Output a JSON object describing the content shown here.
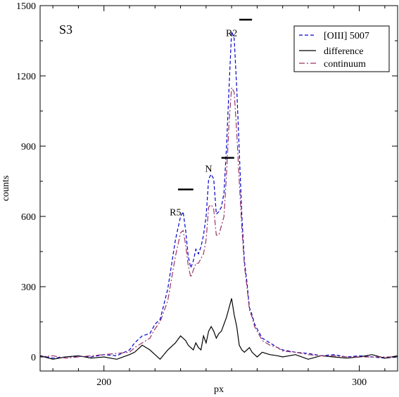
{
  "chart_data": {
    "type": "line",
    "title": "",
    "panel_label": "S3",
    "xlabel": "px",
    "ylabel": "counts",
    "xlim": [
      175,
      315
    ],
    "ylim": [
      -60,
      1500
    ],
    "xticks": [
      200,
      300
    ],
    "yticks": [
      0,
      300,
      600,
      900,
      1200,
      1500
    ],
    "grid": false,
    "legend_position": "top-right",
    "series": [
      {
        "name": "[OIII] 5007",
        "style": "dashed",
        "color": "#0000cc",
        "x": [
          175,
          180,
          185,
          190,
          195,
          200,
          205,
          210,
          212,
          215,
          218,
          220,
          222,
          225,
          228,
          230,
          231,
          232,
          233,
          234,
          235,
          236,
          237,
          238,
          239,
          240,
          241,
          242,
          243,
          244,
          245,
          246,
          247,
          248,
          249,
          250,
          251,
          252,
          253,
          254,
          255,
          256,
          257,
          258,
          259,
          260,
          262,
          265,
          268,
          270,
          275,
          280,
          285,
          290,
          295,
          300,
          305,
          310,
          315
        ],
        "y": [
          5,
          -5,
          0,
          3,
          0,
          10,
          5,
          30,
          60,
          90,
          100,
          140,
          160,
          290,
          500,
          600,
          620,
          540,
          430,
          380,
          410,
          460,
          440,
          470,
          520,
          600,
          760,
          780,
          760,
          610,
          620,
          640,
          700,
          900,
          1150,
          1390,
          1360,
          1150,
          880,
          600,
          410,
          320,
          210,
          180,
          140,
          120,
          80,
          60,
          40,
          30,
          20,
          15,
          5,
          10,
          0,
          5,
          0,
          -5,
          0
        ]
      },
      {
        "name": "difference",
        "style": "solid",
        "color": "#000000",
        "x": [
          175,
          180,
          185,
          190,
          195,
          200,
          205,
          210,
          212,
          215,
          218,
          220,
          222,
          225,
          228,
          230,
          231,
          232,
          233,
          234,
          235,
          236,
          237,
          238,
          239,
          240,
          241,
          242,
          243,
          244,
          245,
          246,
          247,
          248,
          249,
          250,
          251,
          252,
          253,
          254,
          255,
          256,
          257,
          258,
          259,
          260,
          262,
          265,
          268,
          270,
          275,
          280,
          285,
          290,
          295,
          300,
          305,
          310,
          315
        ],
        "y": [
          5,
          -10,
          0,
          5,
          -5,
          0,
          -10,
          10,
          20,
          50,
          30,
          10,
          -10,
          30,
          60,
          90,
          80,
          70,
          50,
          40,
          30,
          60,
          40,
          30,
          90,
          60,
          110,
          130,
          110,
          80,
          100,
          110,
          140,
          170,
          210,
          250,
          180,
          130,
          50,
          30,
          20,
          30,
          40,
          20,
          10,
          0,
          20,
          10,
          5,
          0,
          10,
          -10,
          5,
          0,
          -5,
          0,
          10,
          -5,
          5
        ]
      },
      {
        "name": "continuum",
        "style": "dashdot",
        "color": "#993366",
        "x": [
          175,
          180,
          185,
          190,
          195,
          200,
          205,
          210,
          212,
          215,
          218,
          220,
          222,
          225,
          228,
          230,
          231,
          232,
          233,
          234,
          235,
          236,
          237,
          238,
          239,
          240,
          241,
          242,
          243,
          244,
          245,
          246,
          247,
          248,
          249,
          250,
          251,
          252,
          253,
          254,
          255,
          256,
          257,
          258,
          259,
          260,
          262,
          265,
          268,
          270,
          275,
          280,
          285,
          290,
          295,
          300,
          305,
          310,
          315
        ],
        "y": [
          0,
          5,
          -5,
          0,
          5,
          10,
          15,
          20,
          40,
          60,
          80,
          120,
          150,
          240,
          430,
          530,
          540,
          480,
          390,
          340,
          370,
          400,
          400,
          420,
          440,
          500,
          640,
          650,
          630,
          520,
          520,
          560,
          600,
          780,
          1000,
          1150,
          1130,
          960,
          750,
          550,
          390,
          300,
          200,
          170,
          130,
          110,
          70,
          50,
          40,
          25,
          20,
          10,
          5,
          5,
          0,
          0,
          0,
          0,
          0
        ]
      }
    ],
    "annotations": [
      {
        "text": "R5",
        "x": 228,
        "y": 605,
        "bar_x": [
          229,
          235
        ],
        "bar_y": 715
      },
      {
        "text": "N",
        "x": 241,
        "y": 790,
        "bar_x": [
          246,
          251
        ],
        "bar_y": 850
      },
      {
        "text": "R2",
        "x": 250,
        "y": 1370,
        "bar_x": [
          253,
          258
        ],
        "bar_y": 1440
      }
    ]
  }
}
